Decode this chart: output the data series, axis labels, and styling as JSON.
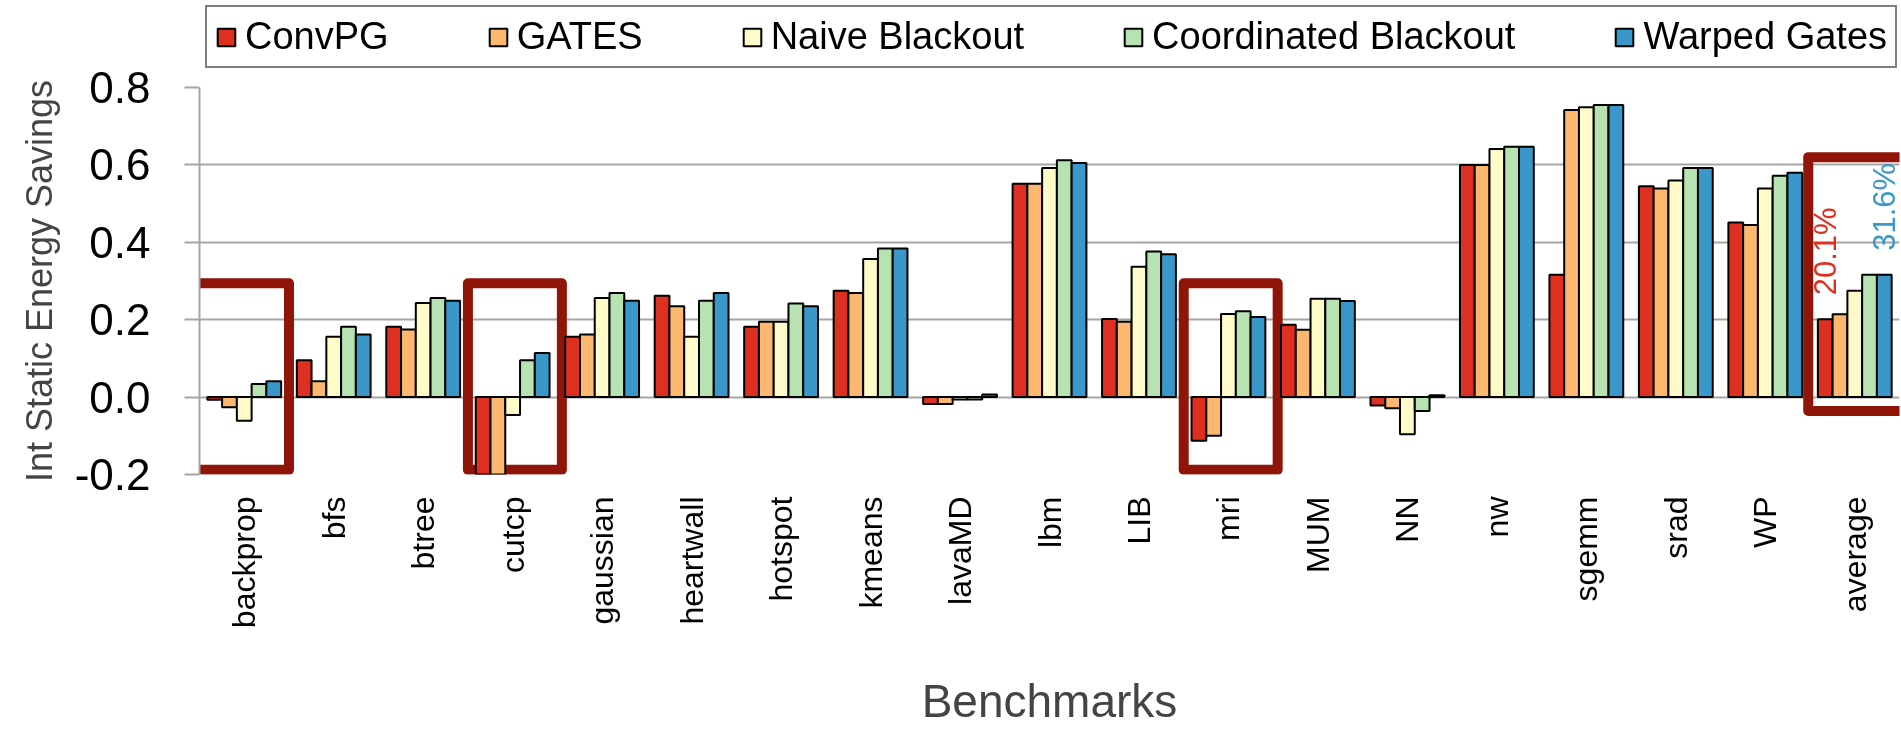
{
  "chart_data": {
    "type": "bar",
    "xlabel": "Benchmarks",
    "ylabel": "Int Static Energy Savings",
    "categories": [
      "backprop",
      "bfs",
      "btree",
      "cutcp",
      "gaussian",
      "heartwall",
      "hotspot",
      "kmeans",
      "lavaMD",
      "lbm",
      "LIB",
      "mri",
      "MUM",
      "NN",
      "nw",
      "sgemm",
      "srad",
      "WP",
      "average"
    ],
    "series": [
      {
        "name": "ConvPG",
        "color": "#dd3020",
        "values": [
          -0.007,
          0.095,
          0.182,
          -0.2,
          0.156,
          0.262,
          0.182,
          0.275,
          -0.018,
          0.551,
          0.202,
          -0.113,
          0.187,
          -0.022,
          0.6,
          0.316,
          0.545,
          0.451,
          0.201
        ],
        "value_labels": [
          null,
          null,
          null,
          null,
          null,
          null,
          null,
          null,
          null,
          null,
          null,
          null,
          null,
          null,
          null,
          null,
          null,
          null,
          "20.1%"
        ]
      },
      {
        "name": "GATES",
        "color": "#fdb870",
        "values": [
          -0.026,
          0.041,
          0.175,
          -0.2,
          0.162,
          0.235,
          0.195,
          0.269,
          -0.018,
          0.551,
          0.195,
          -0.1,
          0.174,
          -0.029,
          0.6,
          0.742,
          0.539,
          0.445,
          0.214
        ]
      },
      {
        "name": "Naive Blackout",
        "color": "#fffbc8",
        "values": [
          -0.061,
          0.156,
          0.243,
          -0.046,
          0.256,
          0.156,
          0.195,
          0.357,
          -0.006,
          0.592,
          0.337,
          0.215,
          0.254,
          -0.096,
          0.641,
          0.749,
          0.56,
          0.539,
          0.275
        ]
      },
      {
        "name": "Coordinated Blackout",
        "color": "#b7e2b1",
        "values": [
          0.034,
          0.182,
          0.256,
          0.095,
          0.269,
          0.249,
          0.242,
          0.384,
          -0.006,
          0.612,
          0.376,
          0.222,
          0.254,
          -0.036,
          0.647,
          0.755,
          0.592,
          0.572,
          0.316
        ]
      },
      {
        "name": "Warped Gates",
        "color": "#3a97c9",
        "values": [
          0.041,
          0.162,
          0.249,
          0.114,
          0.249,
          0.269,
          0.235,
          0.384,
          0.007,
          0.605,
          0.369,
          0.207,
          0.248,
          0.005,
          0.647,
          0.755,
          0.592,
          0.58,
          0.316
        ],
        "value_labels": [
          null,
          null,
          null,
          null,
          null,
          null,
          null,
          null,
          null,
          null,
          null,
          null,
          null,
          null,
          null,
          null,
          null,
          null,
          "31.6%"
        ]
      }
    ],
    "ylim": [
      -0.2,
      0.8
    ],
    "yticks": [
      -0.2,
      {
        "value": 0,
        "label": "0.0"
      },
      0.2,
      0.4,
      0.6,
      0.8
    ],
    "grid": "y",
    "legend": "top"
  }
}
